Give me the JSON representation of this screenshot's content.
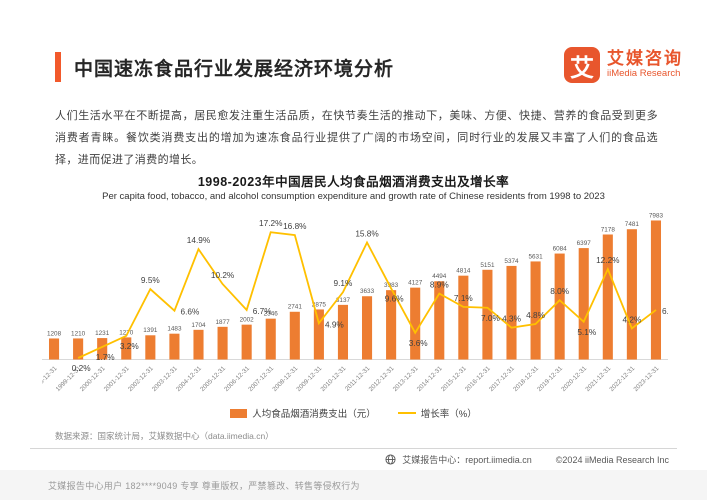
{
  "header": {
    "title": "中国速冻食品行业发展经济环境分析",
    "logo": {
      "mark": "艾",
      "name_cn": "艾媒咨询",
      "name_en": "iiMedia Research"
    }
  },
  "intro": {
    "text": "人们生活水平在不断提高，居民愈发注重生活品质，在快节奏生活的推动下，美味、方便、快捷、营养的食品受到更多消费者青睐。餐饮类消费支出的增加为速冻食品行业提供了广阔的市场空间，同时行业的发展又丰富了人们的食品选择，进而促进了消费的增长。"
  },
  "chart": {
    "title": "1998-2023年中国居民人均食品烟酒消费支出及增长率",
    "subtitle": "Per capita food, tobacco, and alcohol consumption expenditure and growth rate of Chinese residents from 1998 to 2023"
  },
  "chart_data": {
    "type": "bar",
    "title": "1998-2023年中国居民人均食品烟酒消费支出及增长率",
    "categories": [
      "1998-12-31",
      "1999-12-31",
      "2000-12-31",
      "2001-12-31",
      "2002-12-31",
      "2003-12-31",
      "2004-12-31",
      "2005-12-31",
      "2006-12-31",
      "2007-12-31",
      "2008-12-31",
      "2009-12-31",
      "2010-12-31",
      "2011-12-31",
      "2012-12-31",
      "2013-12-31",
      "2014-12-31",
      "2015-12-31",
      "2016-12-31",
      "2017-12-31",
      "2018-12-31",
      "2019-12-31",
      "2020-12-31",
      "2021-12-31",
      "2022-12-31",
      "2023-12-31"
    ],
    "series": [
      {
        "name": "人均食品烟酒消费支出（元）",
        "type": "bar",
        "values": [
          1208,
          1210,
          1231,
          1270,
          1391,
          1483,
          1704,
          1877,
          2002,
          2346,
          2741,
          2875,
          3137,
          3633,
          3983,
          4127,
          4494,
          4814,
          5151,
          5374,
          5631,
          6084,
          6397,
          7178,
          7481,
          7983
        ]
      },
      {
        "name": "增长率（%）",
        "type": "line",
        "values": [
          null,
          0.2,
          1.7,
          3.2,
          9.5,
          6.6,
          14.9,
          10.2,
          6.7,
          17.2,
          16.8,
          4.9,
          9.1,
          15.8,
          9.6,
          3.6,
          8.9,
          7.1,
          7.0,
          4.3,
          4.8,
          8.0,
          5.1,
          12.2,
          4.2,
          6.7
        ]
      }
    ],
    "ylim_bar": [
      0,
      8000
    ],
    "ylim_line": [
      0,
      18
    ],
    "bar_color": "#ED7D31",
    "line_color": "#FFC000",
    "grid": false,
    "legend_position": "bottom",
    "label_side": [
      null,
      "below",
      "below",
      "below",
      "above",
      "right",
      "above",
      "above",
      "right",
      "above",
      "above",
      "right",
      "above",
      "above",
      "below",
      "below",
      "above",
      "above",
      "below",
      "above",
      "above",
      "above",
      "below",
      "above",
      "above",
      "right"
    ]
  },
  "legend": {
    "items": [
      {
        "label": "人均食品烟酒消费支出（元）"
      },
      {
        "label": "增长率（%）"
      }
    ]
  },
  "source": {
    "text": "数据来源：国家统计局，艾媒数据中心（data.iimedia.cn）"
  },
  "footer": {
    "report_center": "艾媒报告中心：report.iimedia.cn",
    "copyright": "©2024  iiMedia Research Inc"
  },
  "watermark": {
    "text": "艾媒报告中心用户 182****9049 专享 尊重版权，严禁篡改、转售等侵权行为"
  }
}
